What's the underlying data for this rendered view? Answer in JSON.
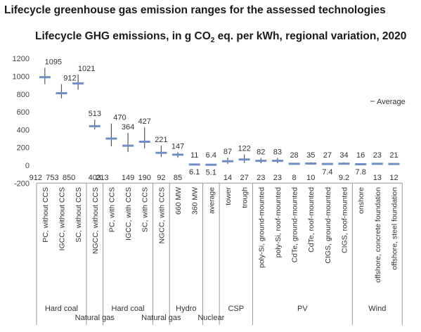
{
  "header": {
    "title": "Lifecycle greenhouse gas emission ranges for the assessed technologies",
    "chart_title_main": "Lifecycle GHG emissions, in g CO",
    "chart_title_sub": "2",
    "chart_title_rest": " eq. per kWh, regional variation, 2020"
  },
  "colors": {
    "average_marker": "#6f8fc4",
    "range_line": "#555555",
    "axis": "#999999"
  },
  "chart_data": {
    "type": "range",
    "title": "Lifecycle GHG emissions, in g CO2 eq. per kWh, regional variation, 2020",
    "ylim": [
      -200,
      1200
    ],
    "yticks": [
      -200,
      0,
      200,
      400,
      600,
      800,
      1000,
      1200
    ],
    "legend": {
      "label": "Average",
      "placement": "right"
    },
    "grid": false,
    "categories": [
      "PC, without CCS",
      "IGCC, without CCS",
      "SC, without CCS",
      "NGCC, without CCS",
      "PC, with CCS",
      "IGCC, with CCS",
      "SC, with CCS",
      "NGCC, with CCS",
      "660 MW",
      "360 MW",
      "average",
      "tower",
      "trough",
      "poly-Si, ground-mounted",
      "poly-Si, roof-mounted",
      "CdTe, ground-mounted",
      "CdTe, roof-mounted",
      "CIGS, ground-mounted",
      "CIGS, roof-mounted",
      "onshore",
      "offshore, concrete foundation",
      "offshore, steel foundation"
    ],
    "max": [
      1095,
      912,
      1021,
      513,
      470,
      364,
      427,
      221,
      147,
      11,
      6.4,
      87,
      122,
      82,
      83,
      28,
      35,
      27,
      34,
      16,
      23,
      21
    ],
    "min": [
      912,
      753,
      850,
      403,
      213,
      149,
      190,
      92,
      85,
      6.1,
      5.1,
      14,
      27,
      23,
      23,
      8,
      10,
      7.4,
      9.2,
      7.8,
      13,
      12
    ],
    "max_labels": [
      "1095",
      "912",
      "1021",
      "513",
      "470",
      "364",
      "427",
      "221",
      "147",
      "11",
      "6.4",
      "87",
      "122",
      "82",
      "83",
      "28",
      "35",
      "27",
      "34",
      "16",
      "23",
      "21"
    ],
    "min_labels": [
      "912",
      "753",
      "850",
      "403",
      "213",
      "149",
      "190",
      "92",
      "85",
      "6.1",
      "5.1",
      "14",
      "27",
      "23",
      "23",
      "8",
      "10",
      "7.4",
      "9.2",
      "7.8",
      "13",
      "12"
    ],
    "average": [
      990,
      810,
      920,
      440,
      300,
      220,
      265,
      140,
      120,
      9,
      6,
      45,
      65,
      50,
      50,
      17,
      20,
      15,
      18,
      12,
      17,
      15
    ],
    "groups": [
      {
        "label": "Hard coal",
        "start": 0,
        "end": 2
      },
      {
        "label": "Natural gas",
        "start": 3,
        "end": 3
      },
      {
        "label": "Hard coal",
        "start": 4,
        "end": 6
      },
      {
        "label": "Natural gas",
        "start": 7,
        "end": 7
      },
      {
        "label": "Hydro",
        "start": 8,
        "end": 9
      },
      {
        "label": "Nuclear",
        "start": 10,
        "end": 10
      },
      {
        "label": "CSP",
        "start": 11,
        "end": 12
      },
      {
        "label": "PV",
        "start": 13,
        "end": 18
      },
      {
        "label": "Wind",
        "start": 19,
        "end": 21
      }
    ]
  }
}
